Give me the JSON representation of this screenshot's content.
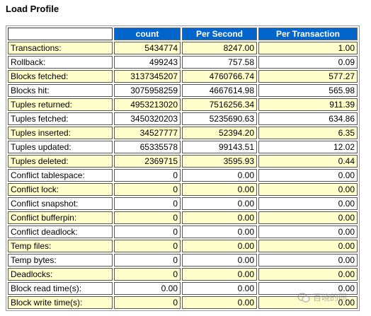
{
  "title": "Load Profile",
  "columns": [
    "",
    "count",
    "Per Second",
    "Per Transaction"
  ],
  "rows": [
    {
      "name": "Transactions:",
      "count": "5434774",
      "per_second": "8247.00",
      "per_transaction": "1.00"
    },
    {
      "name": "Rollback:",
      "count": "499243",
      "per_second": "757.58",
      "per_transaction": "0.09"
    },
    {
      "name": "Blocks fetched:",
      "count": "3137345207",
      "per_second": "4760766.74",
      "per_transaction": "577.27"
    },
    {
      "name": "Blocks hit:",
      "count": "3075958259",
      "per_second": "4667614.98",
      "per_transaction": "565.98"
    },
    {
      "name": "Tuples returned:",
      "count": "4953213020",
      "per_second": "7516256.34",
      "per_transaction": "911.39"
    },
    {
      "name": "Tuples fetched:",
      "count": "3450320203",
      "per_second": "5235690.63",
      "per_transaction": "634.86"
    },
    {
      "name": "Tuples inserted:",
      "count": "34527777",
      "per_second": "52394.20",
      "per_transaction": "6.35"
    },
    {
      "name": "Tuples updated:",
      "count": "65335578",
      "per_second": "99143.51",
      "per_transaction": "12.02"
    },
    {
      "name": "Tuples deleted:",
      "count": "2369715",
      "per_second": "3595.93",
      "per_transaction": "0.44"
    },
    {
      "name": "Conflict tablespace:",
      "count": "0",
      "per_second": "0.00",
      "per_transaction": "0.00"
    },
    {
      "name": "Conflict lock:",
      "count": "0",
      "per_second": "0.00",
      "per_transaction": "0.00"
    },
    {
      "name": "Conflict snapshot:",
      "count": "0",
      "per_second": "0.00",
      "per_transaction": "0.00"
    },
    {
      "name": "Conflict bufferpin:",
      "count": "0",
      "per_second": "0.00",
      "per_transaction": "0.00"
    },
    {
      "name": "Conflict deadlock:",
      "count": "0",
      "per_second": "0.00",
      "per_transaction": "0.00"
    },
    {
      "name": "Temp files:",
      "count": "0",
      "per_second": "0.00",
      "per_transaction": "0.00"
    },
    {
      "name": "Temp bytes:",
      "count": "0",
      "per_second": "0.00",
      "per_transaction": "0.00"
    },
    {
      "name": "Deadlocks:",
      "count": "0",
      "per_second": "0.00",
      "per_transaction": "0.00"
    },
    {
      "name": "Block read time(s):",
      "count": "0.00",
      "per_second": "0.00",
      "per_transaction": "0.00"
    },
    {
      "name": "Block write time(s):",
      "count": "0",
      "per_second": "0.00",
      "per_transaction": "0.00"
    }
  ],
  "watermark": {
    "text": "百晓的同",
    "icon": "wechat-icon"
  },
  "colors": {
    "header_bg": "#0066cc",
    "row_alt_bg": "#ffffcc",
    "row_bg": "#ffffff"
  }
}
